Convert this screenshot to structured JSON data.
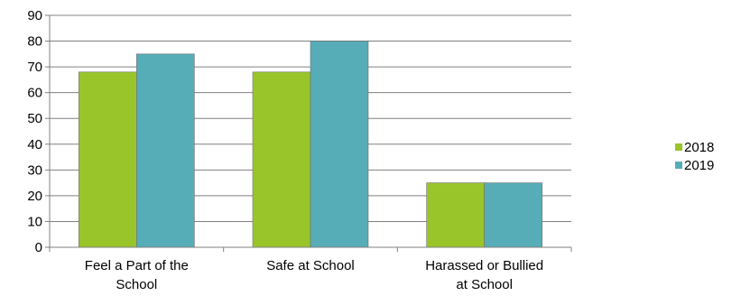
{
  "chart_data": {
    "type": "bar",
    "categories": [
      [
        "Feel a Part of the",
        "School"
      ],
      [
        "Safe at School"
      ],
      [
        "Harassed or Bullied",
        "at School"
      ]
    ],
    "series": [
      {
        "name": "2018",
        "values": [
          68,
          68,
          25
        ],
        "color": "#99c52b"
      },
      {
        "name": "2019",
        "values": [
          75,
          80,
          25
        ],
        "color": "#56adb8"
      }
    ],
    "ylim": [
      0,
      90
    ],
    "yticks": [
      0,
      10,
      20,
      30,
      40,
      50,
      60,
      70,
      80,
      90
    ],
    "grid": true,
    "legend_position": "right"
  }
}
